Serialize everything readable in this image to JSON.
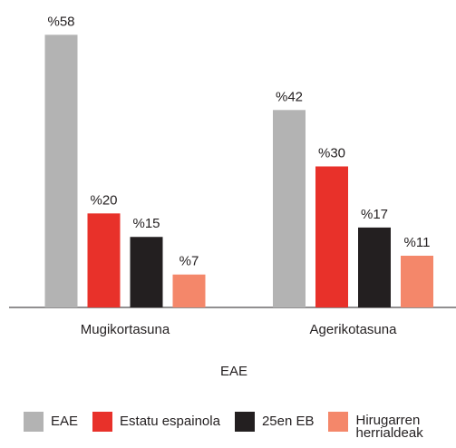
{
  "chart_data": {
    "type": "bar",
    "categories": [
      "Mugikortasuna",
      "Agerikotasuna"
    ],
    "xlabel": "EAE",
    "series": [
      {
        "name": "EAE",
        "color": "#b3b3b3",
        "values": [
          58,
          42
        ],
        "value_labels": [
          "%58",
          "%42"
        ]
      },
      {
        "name": "Estatu espainola",
        "color": "#e8312a",
        "values": [
          20,
          30
        ],
        "value_labels": [
          "%20",
          "%30"
        ]
      },
      {
        "name": "25en EB",
        "color": "#231f20",
        "values": [
          15,
          17
        ],
        "value_labels": [
          "%15",
          "%17"
        ]
      },
      {
        "name": "Hirugarren herrialdeak",
        "color": "#f4876a",
        "values": [
          7,
          11
        ],
        "value_labels": [
          "%7",
          "%11"
        ]
      }
    ],
    "ylim": [
      0,
      60
    ],
    "legend": "bottom"
  }
}
